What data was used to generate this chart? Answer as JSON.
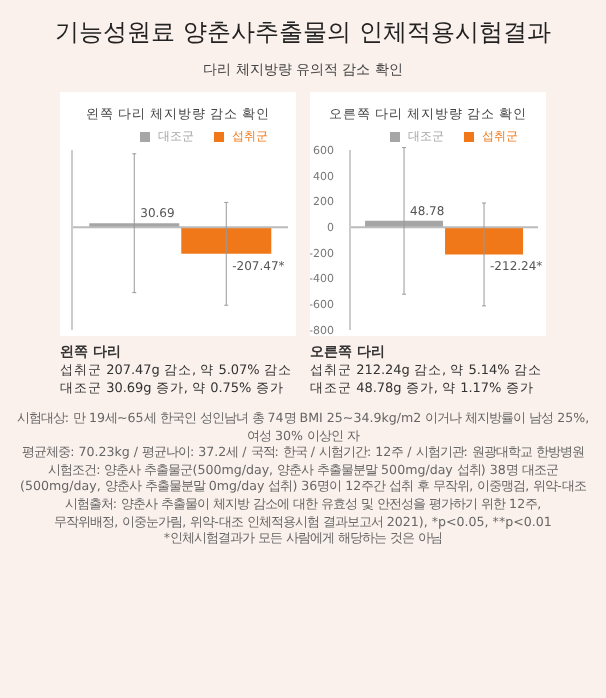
{
  "chart_data": [
    {
      "type": "bar",
      "title": "왼쪽 다리 체지방량 감소 확인",
      "categories": [
        null
      ],
      "series": [
        {
          "name": "대조군",
          "color": "#a6a6a6",
          "values": [
            30.69
          ],
          "errors": [
            540
          ],
          "value_labels": [
            "30.69"
          ]
        },
        {
          "name": "섭취군",
          "color": "#f07818",
          "values": [
            -207.47
          ],
          "errors": [
            400
          ],
          "value_labels": [
            "-207.47*"
          ]
        }
      ],
      "ylim": [
        -800,
        600
      ],
      "yticks": [
        600,
        400,
        200,
        0,
        -200,
        -400,
        -600,
        -800
      ],
      "tick_labels": false,
      "legend": "top right",
      "ref_lines": [
        {
          "axis": "y",
          "value": 0
        }
      ],
      "annotations": [
        "기능성원료 양춘사추출물의 인체적용시험결과",
        "다리 체지방량 유의적 감소 확인",
        "왼쪽 다리",
        "섭취군 207.47g 감소, 약 5.07% 감소",
        "대조군 30.69g 증가, 약 0.75% 증가"
      ]
    },
    {
      "type": "bar",
      "title": "오른쪽 다리 체지방량 감소 확인",
      "categories": [
        null
      ],
      "series": [
        {
          "name": "대조군",
          "color": "#a6a6a6",
          "values": [
            48.78
          ],
          "errors": [
            570
          ],
          "value_labels": [
            "48.78"
          ]
        },
        {
          "name": "섭취군",
          "color": "#f07818",
          "values": [
            -212.24
          ],
          "errors": [
            400
          ],
          "value_labels": [
            "-212.24*"
          ]
        }
      ],
      "ylim": [
        -800,
        600
      ],
      "yticks": [
        600,
        400,
        200,
        0,
        -200,
        -400,
        -600,
        -800
      ],
      "tick_labels": "y",
      "legend": "top right",
      "ref_lines": [
        {
          "axis": "y",
          "value": 0
        }
      ],
      "annotations": [
        "오른쪽 다리",
        "섭취군 212.24g 감소, 약 5.14% 감소",
        "대조군 48.78g 증가, 약 1.17% 증가",
        "시험대상: 만 19세~65세 한국인 성인남녀 총 74명 BMI 25~34.9kg/m2 이거나 체지방률이 남성 25%, 여성 30% 이상인 자",
        "평균체중: 70.23kg / 평균나이: 37.2세 / 국적: 한국 / 시험기간: 12주 / 시험기관: 원광대학교 한방병원",
        "시험조건: 양춘사 추출물군(500mg/day, 양춘사 추출물분말 500mg/day 섭취) 38명 대조군",
        "(500mg/day, 양춘사 추출물분말 0mg/day 섭취) 36명이 12주간 섭취 후 무작위, 이중맹검, 위약-대조",
        "시험출처: 양춘사 추출물이 체지방 감소에 대한 유효성 및 안전성을 평가하기 위한 12주,",
        "무작위배정, 이중눈가림, 위약-대조 인체적용시험 결과보고서 2021), *p<0.05, **p<0.01",
        "*인체시험결과가 모든 사람에게 해당하는 것은 아님"
      ]
    }
  ]
}
